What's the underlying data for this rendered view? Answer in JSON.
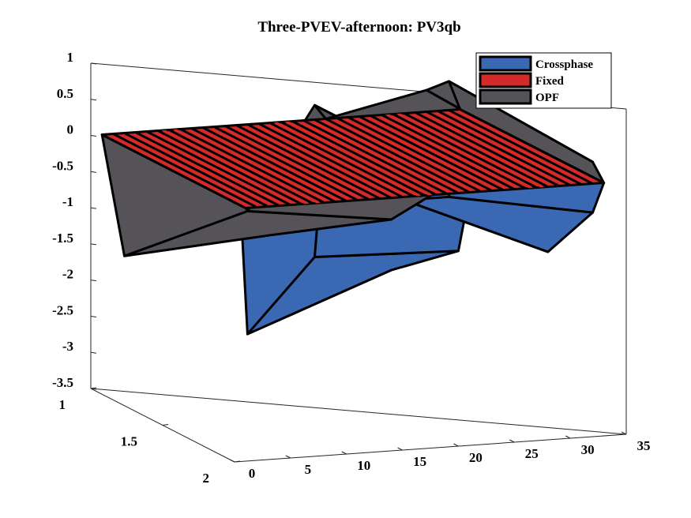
{
  "chart_data": {
    "type": "surface3d",
    "title": "Three-PVEV-afternoon: PV3qb",
    "xlim": [
      0,
      35
    ],
    "ylim": [
      1,
      2
    ],
    "zlim": [
      -3.5,
      1
    ],
    "x_ticks": [
      "0",
      "5",
      "10",
      "15",
      "20",
      "25",
      "30",
      "35"
    ],
    "y_ticks": [
      "1",
      "1.5",
      "2"
    ],
    "z_ticks": [
      "1",
      "0.5",
      "0",
      "-0.5",
      "-1",
      "-1.5",
      "-2",
      "-2.5",
      "-3",
      "-3.5"
    ],
    "legend_position": "top-right",
    "series": [
      {
        "name": "Crossphase",
        "color": "#3a68b3",
        "row_y1": [
          [
            13,
            0
          ],
          [
            14,
            -2.9
          ],
          [
            20,
            -1.9
          ],
          [
            21,
            0
          ],
          [
            28,
            -1.2
          ],
          [
            32,
            -1.2
          ],
          [
            33,
            0
          ]
        ],
        "row_y2": [
          [
            13,
            0
          ],
          [
            14,
            -1.0
          ],
          [
            20,
            -0.8
          ],
          [
            21,
            0
          ],
          [
            28,
            -0.9
          ],
          [
            32,
            -0.4
          ],
          [
            33,
            0
          ]
        ]
      },
      {
        "name": "Fixed",
        "color": "#d42a2a",
        "row_y1": [
          [
            1,
            0
          ],
          [
            33,
            0
          ]
        ],
        "row_y2": [
          [
            1,
            0
          ],
          [
            33,
            0
          ]
        ]
      },
      {
        "name": "OPF",
        "color": "#555357",
        "row_y1": [
          [
            1,
            0
          ],
          [
            3,
            -1.7
          ],
          [
            14,
            -1.2
          ],
          [
            20,
            0.2
          ],
          [
            21,
            0
          ],
          [
            30,
            0.3
          ],
          [
            32,
            0.4
          ],
          [
            33,
            0
          ]
        ],
        "row_y2": [
          [
            1,
            0
          ],
          [
            3,
            -0.4
          ],
          [
            14,
            -0.3
          ],
          [
            20,
            0.2
          ],
          [
            21,
            0
          ],
          [
            30,
            0.2
          ],
          [
            32,
            0.3
          ],
          [
            33,
            0
          ]
        ]
      }
    ]
  }
}
